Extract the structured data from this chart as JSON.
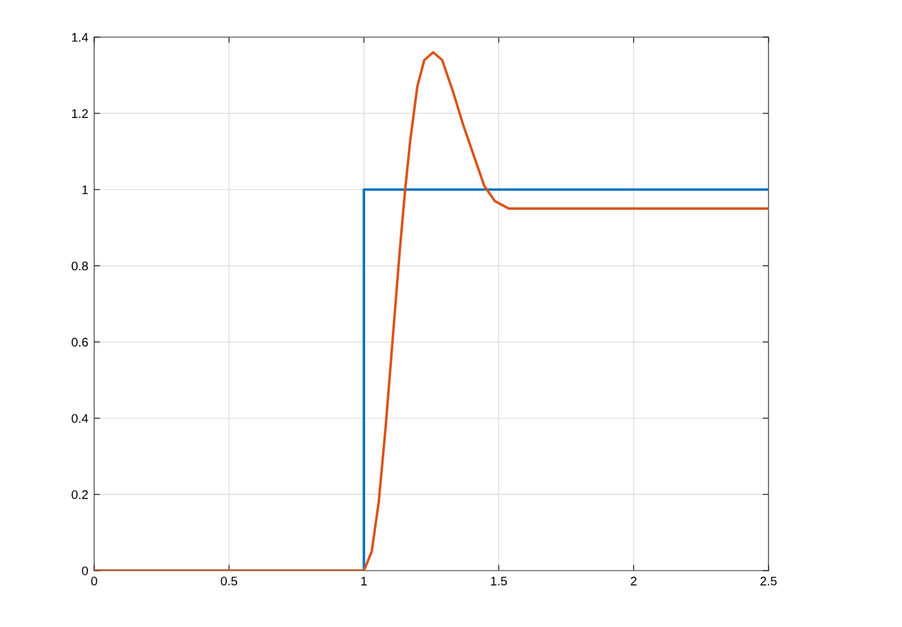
{
  "chart_data": {
    "type": "line",
    "series": [
      {
        "color": "#0072bd",
        "x": [
          0,
          1,
          1,
          2.5
        ],
        "values": [
          0,
          0,
          1,
          1
        ]
      },
      {
        "color": "#d95319",
        "x": [
          0,
          1.0,
          1.029,
          1.055,
          1.081,
          1.107,
          1.133,
          1.153,
          1.172,
          1.198,
          1.224,
          1.257,
          1.29,
          1.329,
          1.368,
          1.407,
          1.446,
          1.485,
          1.537,
          2.5
        ],
        "values": [
          0,
          0,
          0.05,
          0.18,
          0.38,
          0.61,
          0.84,
          1.0,
          1.13,
          1.27,
          1.34,
          1.36,
          1.34,
          1.26,
          1.17,
          1.09,
          1.01,
          0.97,
          0.95,
          0.95
        ]
      }
    ],
    "xlim": [
      0,
      2.5
    ],
    "xticks": [
      0,
      0.5,
      1,
      1.5,
      2,
      2.5
    ],
    "ylim": [
      0,
      1.4
    ],
    "yticks": [
      0,
      0.2,
      0.4,
      0.6,
      0.8,
      1,
      1.2,
      1.4
    ],
    "grid": true,
    "marker": "none",
    "line_style": "solid"
  }
}
